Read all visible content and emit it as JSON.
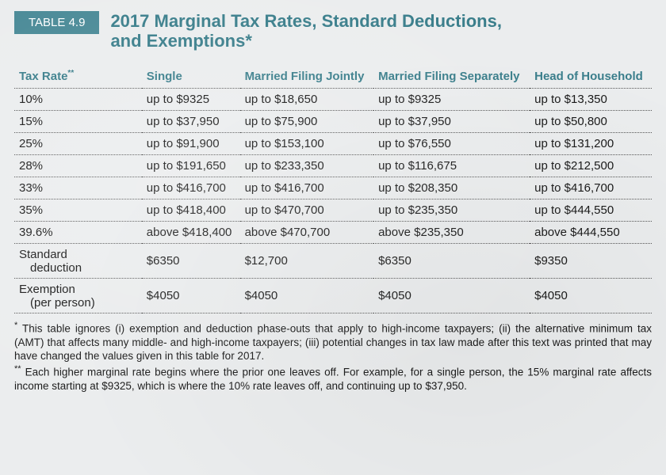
{
  "badge": "TABLE 4.9",
  "title_line1": "2017 Marginal Tax Rates, Standard Deductions,",
  "title_line2": "and Exemptions*",
  "colors": {
    "badge_bg": "#4a8a97",
    "badge_text": "#ffffff",
    "heading_text": "#3a7e8b",
    "body_text": "#1a1a1a",
    "page_bg": "#ebedee",
    "rule": "#555555"
  },
  "columns": {
    "c1": "Tax Rate",
    "c1_sup": "**",
    "c2": "Single",
    "c3": "Married Filing Jointly",
    "c4": "Married Filing Separately",
    "c5": "Head of Household"
  },
  "rows": [
    {
      "rate": "10%",
      "single": "up to $9325",
      "joint": "up to $18,650",
      "sep": "up to $9325",
      "hoh": "up to $13,350"
    },
    {
      "rate": "15%",
      "single": "up to $37,950",
      "joint": "up to $75,900",
      "sep": "up to $37,950",
      "hoh": "up to $50,800"
    },
    {
      "rate": "25%",
      "single": "up to $91,900",
      "joint": "up to $153,100",
      "sep": "up to $76,550",
      "hoh": "up to $131,200"
    },
    {
      "rate": "28%",
      "single": "up to $191,650",
      "joint": "up to $233,350",
      "sep": "up to $116,675",
      "hoh": "up to $212,500"
    },
    {
      "rate": "33%",
      "single": "up to $416,700",
      "joint": "up to $416,700",
      "sep": "up to $208,350",
      "hoh": "up to $416,700"
    },
    {
      "rate": "35%",
      "single": "up to $418,400",
      "joint": "up to $470,700",
      "sep": "up to $235,350",
      "hoh": "up to $444,550"
    },
    {
      "rate": "39.6%",
      "single": "above $418,400",
      "joint": "above $470,700",
      "sep": "above $235,350",
      "hoh": "above $444,550"
    }
  ],
  "std_deduction": {
    "label": "Standard",
    "sublabel": "deduction",
    "single": "$6350",
    "joint": "$12,700",
    "sep": "$6350",
    "hoh": "$9350"
  },
  "exemption": {
    "label": "Exemption",
    "sublabel": "(per person)",
    "single": "$4050",
    "joint": "$4050",
    "sep": "$4050",
    "hoh": "$4050"
  },
  "footnote1": "This table ignores (i) exemption and deduction phase-outs that apply to high-income taxpayers; (ii) the alternative minimum tax (AMT) that affects many middle- and high-income taxpayers; (iii) potential changes in tax law made after this text was printed that may have changed the values given in this table for 2017.",
  "footnote2": "Each higher marginal rate begins where the prior one leaves off. For example, for a single person, the 15% marginal rate affects income starting at $9325, which is where the 10% rate leaves off, and continuing up to $37,950."
}
